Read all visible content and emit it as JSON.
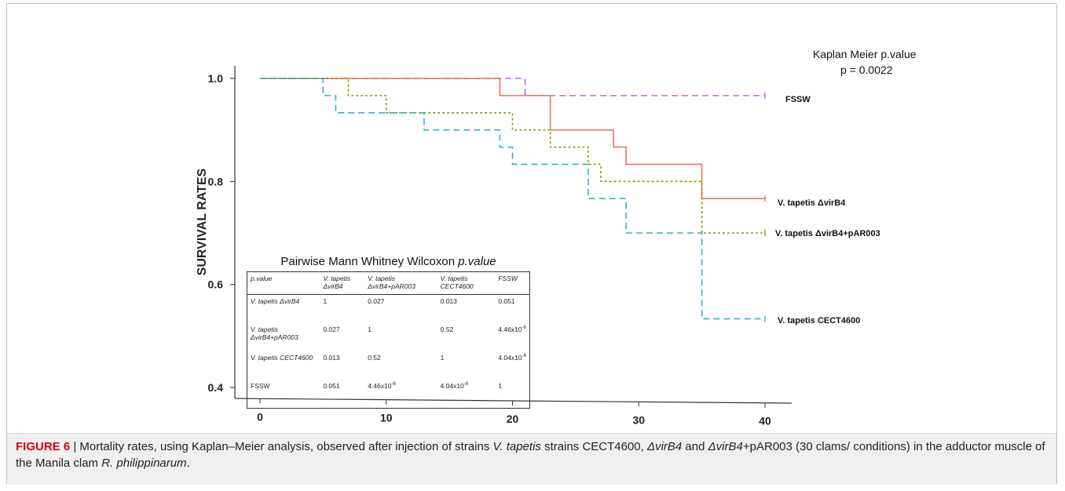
{
  "chart_data": {
    "type": "line",
    "subtype": "kaplan-meier step",
    "title": "",
    "xlabel": "",
    "ylabel": "SURVIVAL RATES",
    "xlim": [
      0,
      40
    ],
    "ylim": [
      0.4,
      1.0
    ],
    "x_ticks": [
      "0",
      "10",
      "20",
      "30",
      "40"
    ],
    "y_ticks": [
      "1.0",
      "0.8",
      "0.6",
      "0.4"
    ],
    "grid": false,
    "annotation": {
      "line1": "Kaplan Meier p.value",
      "line2": "p = 0.0022"
    },
    "series": [
      {
        "name": "FSSW",
        "color": "#b86be8",
        "dash": "8,5",
        "steps": [
          [
            0,
            1.0
          ],
          [
            21,
            0.9667
          ],
          [
            40,
            0.9667
          ]
        ]
      },
      {
        "name": "V. tapetis ΔvirB4",
        "color": "#f07060",
        "dash": "",
        "steps": [
          [
            0,
            1.0
          ],
          [
            19,
            0.9667
          ],
          [
            23,
            0.9
          ],
          [
            28,
            0.8667
          ],
          [
            29,
            0.8333
          ],
          [
            35,
            0.7667
          ],
          [
            40,
            0.7667
          ]
        ]
      },
      {
        "name": "V. tapetis ΔvirB4+pAR003",
        "color": "#8a9a00",
        "dash": "3,3",
        "steps": [
          [
            0,
            1.0
          ],
          [
            7,
            0.9667
          ],
          [
            10,
            0.9333
          ],
          [
            20,
            0.9
          ],
          [
            23,
            0.8667
          ],
          [
            26,
            0.8333
          ],
          [
            27,
            0.8
          ],
          [
            35,
            0.7
          ],
          [
            40,
            0.7
          ]
        ]
      },
      {
        "name": "V. tapetis CECT4600",
        "color": "#2bb5bd",
        "dash": "8,5",
        "steps": [
          [
            0,
            1.0
          ],
          [
            5,
            0.9667
          ],
          [
            6,
            0.9333
          ],
          [
            13,
            0.9
          ],
          [
            19,
            0.8667
          ],
          [
            20,
            0.8333
          ],
          [
            26,
            0.7667
          ],
          [
            29,
            0.7
          ],
          [
            35,
            0.5333
          ],
          [
            40,
            0.5333
          ]
        ]
      }
    ],
    "inset_table": {
      "title_plain": "Pairwise Mann Whitney Wilcoxon ",
      "title_italic": "p.value",
      "header": [
        "p.value",
        "V. tapetis ΔvirB4",
        "V. tapetis ΔvirB4+pAR003",
        "V. tapetis CECT4600",
        "FSSW"
      ],
      "rows": [
        [
          "V. tapetis ΔvirB4",
          "1",
          "0.027",
          "0.013",
          "0.051"
        ],
        [
          "V. tapetis ΔvirB4+pAR003",
          "0.027",
          "1",
          "0.52",
          "4.46x10-6"
        ],
        [
          "V. tapetis CECT4600",
          "0.013",
          "0.52",
          "1",
          "4.04x10-6"
        ],
        [
          "FSSW",
          "0.051",
          "4.46x10-6",
          "4.04x10-6",
          "1"
        ]
      ]
    }
  },
  "caption": {
    "figure_label": "FIGURE 6",
    "separator": " | ",
    "text_1": "Mortality rates, using Kaplan–Meier analysis, observed after injection of strains ",
    "italic_1": "V. tapetis",
    "text_2": " strains CECT4600, ",
    "italic_2": "ΔvirB4",
    "text_3": " and ",
    "italic_3": "ΔvirB4",
    "text_4": "+pAR003 (30 clams/ conditions) in the adductor muscle of the Manila clam ",
    "italic_4": "R. philippinarum",
    "text_5": "."
  }
}
